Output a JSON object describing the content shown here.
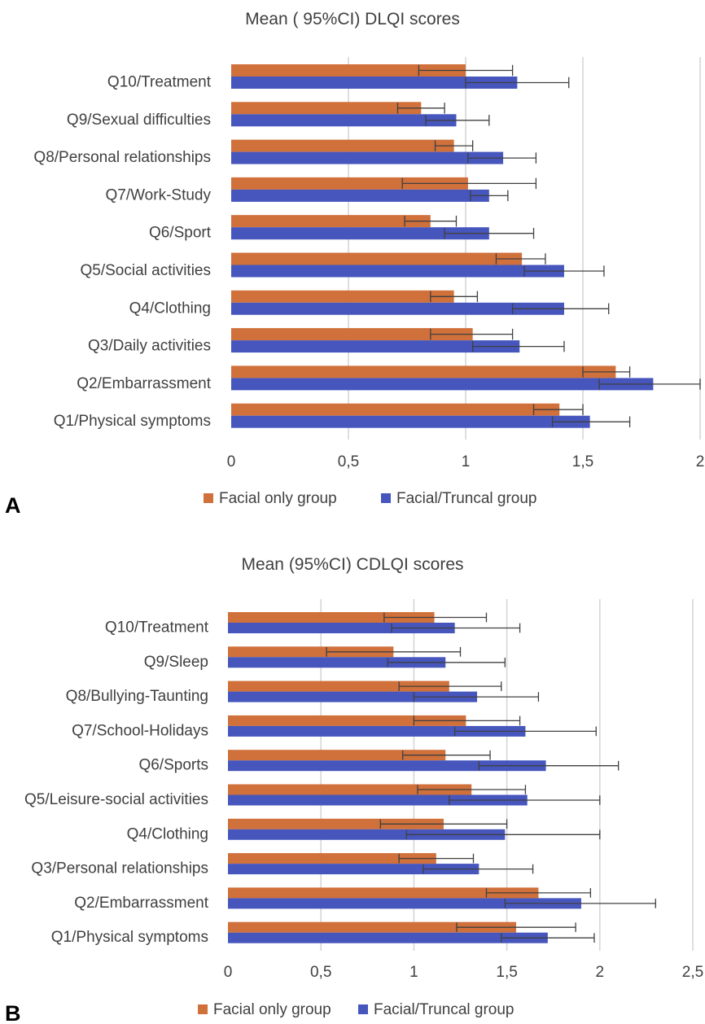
{
  "colors": {
    "facial_only": "#d0703a",
    "facial_truncal": "#4656bd"
  },
  "chart_data": [
    {
      "type": "bar",
      "orientation": "horizontal",
      "panel_label": "A",
      "title": "Mean ( 95%CI) DLQI scores",
      "xlim": [
        0,
        2
      ],
      "xticks": [
        0,
        0.5,
        1,
        1.5,
        2
      ],
      "xtick_labels": [
        "0",
        "0,5",
        "1",
        "1,5",
        "2"
      ],
      "grid": "vertical",
      "legend_position": "bottom",
      "categories": [
        "Q10/Treatment",
        "Q9/Sexual difficulties",
        "Q8/Personal relationships",
        "Q7/Work-Study",
        "Q6/Sport",
        "Q5/Social activities",
        "Q4/Clothing",
        "Q3/Daily activities",
        "Q2/Embarrassment",
        "Q1/Physical symptoms"
      ],
      "series": [
        {
          "name": "Facial only group",
          "color_key": "facial_only",
          "values": [
            1.0,
            0.81,
            0.95,
            1.01,
            0.85,
            1.24,
            0.95,
            1.03,
            1.64,
            1.4
          ],
          "ci_low": [
            0.8,
            0.71,
            0.87,
            0.73,
            0.74,
            1.13,
            0.85,
            0.85,
            1.5,
            1.29
          ],
          "ci_high": [
            1.2,
            0.91,
            1.03,
            1.3,
            0.96,
            1.34,
            1.05,
            1.2,
            1.7,
            1.5
          ]
        },
        {
          "name": "Facial/Truncal group",
          "color_key": "facial_truncal",
          "values": [
            1.22,
            0.96,
            1.16,
            1.1,
            1.1,
            1.42,
            1.42,
            1.23,
            1.8,
            1.53
          ],
          "ci_low": [
            1.0,
            0.83,
            1.01,
            1.02,
            0.91,
            1.25,
            1.2,
            1.03,
            1.57,
            1.37
          ],
          "ci_high": [
            1.44,
            1.1,
            1.3,
            1.18,
            1.29,
            1.59,
            1.61,
            1.42,
            2.0,
            1.7
          ]
        }
      ]
    },
    {
      "type": "bar",
      "orientation": "horizontal",
      "panel_label": "B",
      "title": "Mean (95%CI) CDLQI scores",
      "xlim": [
        0,
        2.5
      ],
      "xticks": [
        0,
        0.5,
        1,
        1.5,
        2,
        2.5
      ],
      "xtick_labels": [
        "0",
        "0,5",
        "1",
        "1,5",
        "2",
        "2,5"
      ],
      "grid": "vertical",
      "legend_position": "bottom",
      "categories": [
        "Q10/Treatment",
        "Q9/Sleep",
        "Q8/Bullying-Taunting",
        "Q7/School-Holidays",
        "Q6/Sports",
        "Q5/Leisure-social activities",
        "Q4/Clothing",
        "Q3/Personal relationships",
        "Q2/Embarrassment",
        "Q1/Physical symptoms"
      ],
      "series": [
        {
          "name": "Facial only group",
          "color_key": "facial_only",
          "values": [
            1.11,
            0.89,
            1.19,
            1.28,
            1.17,
            1.31,
            1.16,
            1.12,
            1.67,
            1.55
          ],
          "ci_low": [
            0.84,
            0.53,
            0.92,
            1.0,
            0.94,
            1.02,
            0.82,
            0.92,
            1.39,
            1.23
          ],
          "ci_high": [
            1.39,
            1.25,
            1.47,
            1.57,
            1.41,
            1.6,
            1.5,
            1.32,
            1.95,
            1.87
          ]
        },
        {
          "name": "Facial/Truncal group",
          "color_key": "facial_truncal",
          "values": [
            1.22,
            1.17,
            1.34,
            1.6,
            1.71,
            1.61,
            1.49,
            1.35,
            1.9,
            1.72
          ],
          "ci_low": [
            0.88,
            0.86,
            1.0,
            1.22,
            1.35,
            1.19,
            0.96,
            1.05,
            1.49,
            1.47
          ],
          "ci_high": [
            1.57,
            1.49,
            1.67,
            1.98,
            2.1,
            2.0,
            2.0,
            1.64,
            2.3,
            1.97
          ]
        }
      ]
    }
  ]
}
